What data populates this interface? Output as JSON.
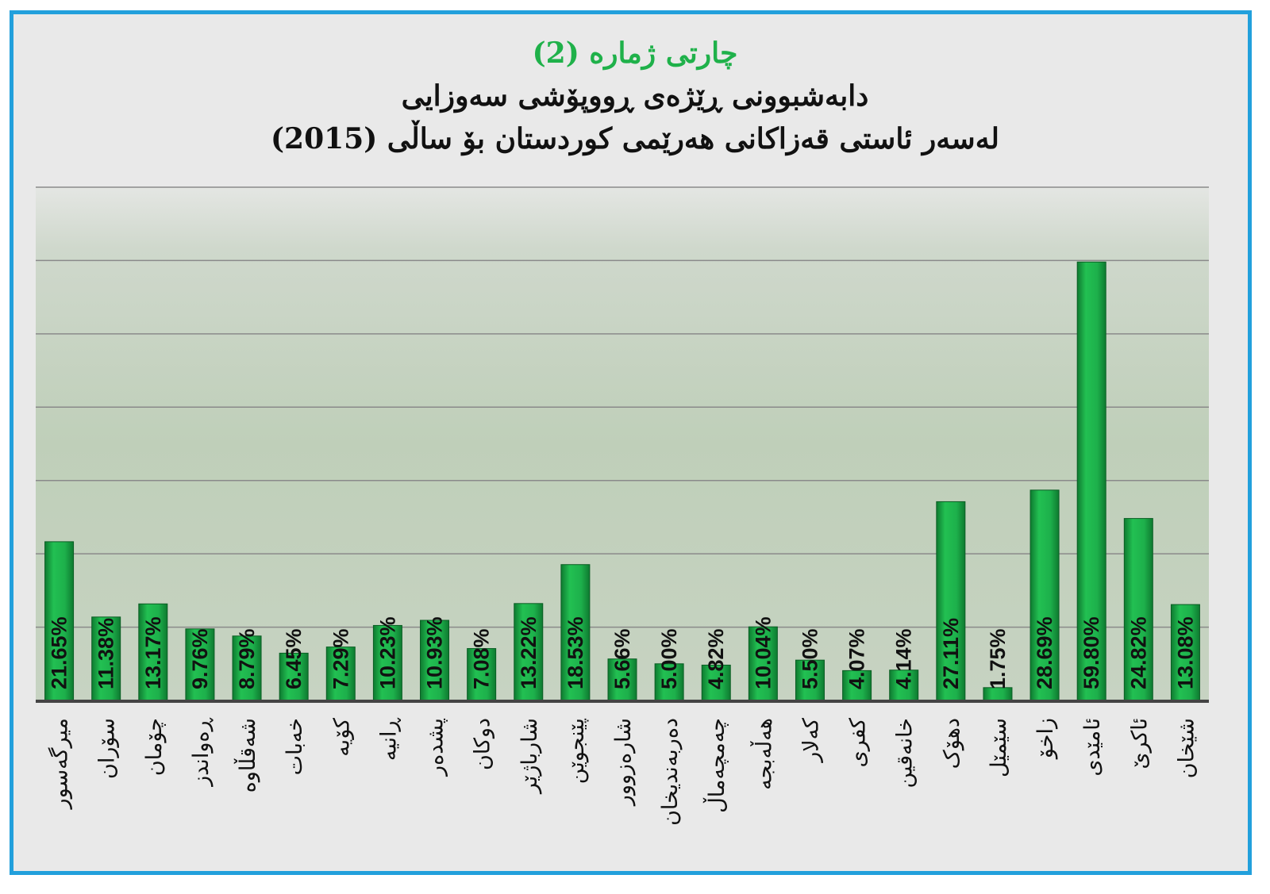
{
  "chart_data": {
    "type": "bar",
    "title": "چارتی ژمارە (2)",
    "subtitle_line1": "دابەشبوونی ڕێژەی ڕووپۆشی سەوزایی",
    "subtitle_line2": "لەسەر ئاستی قەزاکانی هەرێمی کوردستان بۆ ساڵی (2015)",
    "xlabel": "",
    "ylabel": "",
    "ylim": [
      0,
      70
    ],
    "grid": true,
    "grid_step": 10,
    "categories": [
      "میرگەسور",
      "سۆران",
      "چۆمان",
      "ڕەواندز",
      "شەقڵاوە",
      "خەبات",
      "کۆیە",
      "ڕانیە",
      "پشدەر",
      "دوکان",
      "شارباژێر",
      "پێنجوێن",
      "شارەزوور",
      "دەربەندیخان",
      "چەمچەماڵ",
      "هەڵەبجە",
      "کەلار",
      "کفری",
      "خانەقین",
      "دهۆک",
      "سێمێل",
      "زاخۆ",
      "ئامێدی",
      "ئاکرێ",
      "شێخان"
    ],
    "values": [
      21.65,
      11.38,
      13.17,
      9.76,
      8.79,
      6.45,
      7.29,
      10.23,
      10.93,
      7.08,
      13.22,
      18.53,
      5.66,
      5.0,
      4.82,
      10.04,
      5.5,
      4.07,
      4.14,
      27.11,
      1.75,
      28.69,
      59.8,
      24.82,
      13.08
    ],
    "value_labels": [
      "21.65%",
      "11.38%",
      "13.17%",
      "9.76%",
      "8.79%",
      "6.45%",
      "7.29%",
      "10.23%",
      "10.93%",
      "7.08%",
      "13.22%",
      "18.53%",
      "5.66%",
      "5.00%",
      "4.82%",
      "10.04%",
      "5.50%",
      "4.07%",
      "4.14%",
      "27.11%",
      "1.75%",
      "28.69%",
      "59.80%",
      "24.82%",
      "13.08%"
    ],
    "colors": {
      "bar": "#1db04b",
      "bar_dark": "#0e7a30",
      "title": "#1fb14a",
      "frame": "#22a0dc"
    }
  }
}
